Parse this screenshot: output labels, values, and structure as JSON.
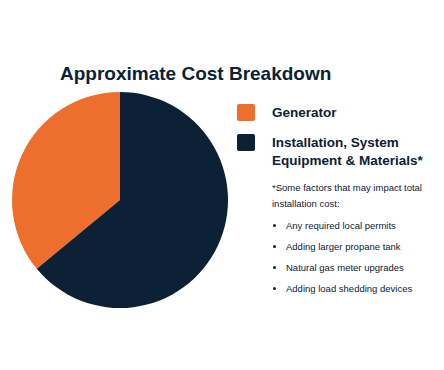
{
  "chart_data": {
    "type": "pie",
    "title": "Approximate Cost Breakdown",
    "categories": [
      "Generator",
      "Installation, System Equipment & Materials*"
    ],
    "values": [
      36,
      64
    ],
    "colors": [
      "#ee6f2d",
      "#0c2036"
    ],
    "legend": "right",
    "note": {
      "heading": "*Some factors that may impact total installation cost:",
      "items": [
        "Any required local permits",
        "Adding larger propane tank",
        "Natural gas meter upgrades",
        "Adding load shedding devices"
      ]
    }
  }
}
